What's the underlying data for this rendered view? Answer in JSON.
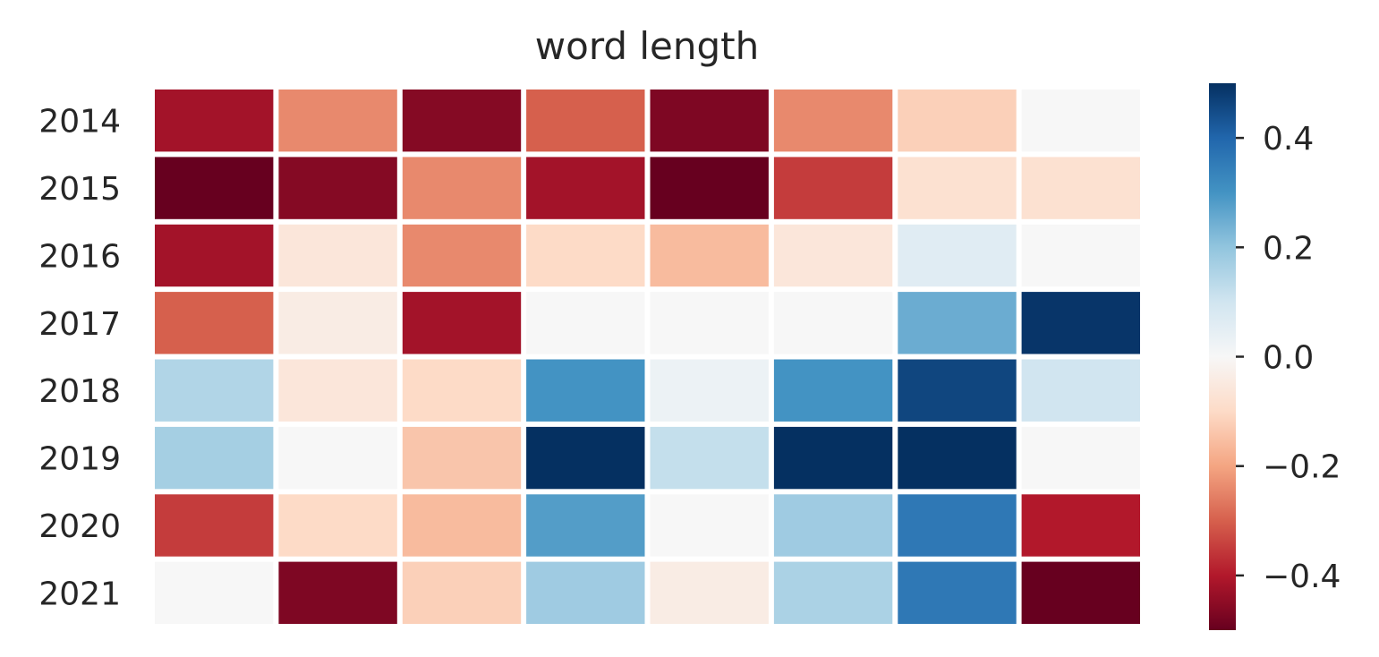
{
  "chart_data": {
    "type": "heatmap",
    "title": "word length",
    "rows": [
      "2014",
      "2015",
      "2016",
      "2017",
      "2018",
      "2019",
      "2020",
      "2021"
    ],
    "columns": [
      "",
      "",
      "",
      "",
      "",
      "",
      "",
      ""
    ],
    "values": [
      [
        -0.42,
        -0.24,
        -0.46,
        -0.3,
        -0.47,
        -0.24,
        -0.12,
        0.0
      ],
      [
        -0.5,
        -0.46,
        -0.24,
        -0.42,
        -0.5,
        -0.35,
        -0.08,
        -0.08
      ],
      [
        -0.42,
        -0.06,
        -0.24,
        -0.1,
        -0.16,
        -0.06,
        0.06,
        0.0
      ],
      [
        -0.3,
        -0.04,
        -0.42,
        0.0,
        0.0,
        0.0,
        0.25,
        0.49
      ],
      [
        0.15,
        -0.06,
        -0.1,
        0.3,
        0.03,
        0.3,
        0.46,
        0.1
      ],
      [
        0.17,
        0.0,
        -0.14,
        0.5,
        0.12,
        0.5,
        0.5,
        0.0
      ],
      [
        -0.35,
        -0.1,
        -0.16,
        0.28,
        0.0,
        0.18,
        0.36,
        -0.4
      ],
      [
        0.0,
        -0.47,
        -0.12,
        0.18,
        -0.04,
        0.16,
        0.36,
        -0.5
      ]
    ],
    "colormap": "RdBu",
    "vmin": -0.5,
    "vmax": 0.5,
    "colorbar_ticks": [
      0.4,
      0.2,
      0.0,
      -0.2,
      -0.4
    ],
    "colorbar_tick_labels": [
      "0.4",
      "0.2",
      "0.0",
      "−0.2",
      "−0.4"
    ],
    "grid": false
  }
}
